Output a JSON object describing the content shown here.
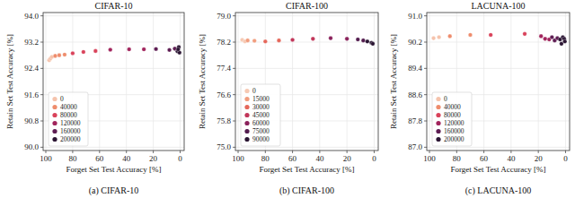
{
  "chart_data": [
    {
      "type": "scatter",
      "title": "CIFAR-10",
      "caption": "(a) CIFAR-10",
      "x_label": "Forget Set Test Accuracy [%]",
      "y_label": "Retain Set Test Accuracy [%]",
      "xlim": [
        102,
        -3
      ],
      "ylim": [
        89.9,
        94.1
      ],
      "xticks": [
        100,
        80,
        60,
        40,
        20,
        0
      ],
      "yticks": [
        {
          "value": 90,
          "label": "90.0"
        },
        {
          "value": 90.8,
          "label": "90.8"
        },
        {
          "value": 91.6,
          "label": "91.6"
        },
        {
          "value": 92.4,
          "label": "92.4"
        },
        {
          "value": 93.2,
          "label": "93.2"
        },
        {
          "value": 94,
          "label": "94.0"
        }
      ],
      "grid": true,
      "legend": "lower left",
      "series": [
        {
          "name": "0",
          "color": "#f5c3ac",
          "x": [
            97.5,
            96.5,
            95.5
          ],
          "y": [
            92.65,
            92.7,
            92.75
          ]
        },
        {
          "name": "40000",
          "color": "#ee8c6c",
          "x": [
            93,
            90,
            86
          ],
          "y": [
            92.78,
            92.8,
            92.82
          ]
        },
        {
          "name": "80000",
          "color": "#d9425a",
          "x": [
            80,
            72,
            63
          ],
          "y": [
            92.86,
            92.9,
            92.93
          ]
        },
        {
          "name": "120000",
          "color": "#a1245c",
          "x": [
            52,
            38,
            27
          ],
          "y": [
            92.97,
            92.98,
            92.98
          ]
        },
        {
          "name": "160000",
          "color": "#5e1d53",
          "x": [
            18,
            8,
            4
          ],
          "y": [
            92.99,
            92.96,
            93.0
          ]
        },
        {
          "name": "200000",
          "color": "#2b1533",
          "x": [
            2,
            1,
            0.5,
            1.5
          ],
          "y": [
            92.92,
            93.05,
            92.88,
            92.98
          ]
        }
      ]
    },
    {
      "type": "scatter",
      "title": "CIFAR-100",
      "caption": "(b) CIFAR-100",
      "x_label": "Forget Set Test Accuracy [%]",
      "y_label": "Retain Set Test Accuracy [%]",
      "xlim": [
        102,
        -3
      ],
      "ylim": [
        74.9,
        79.1
      ],
      "xticks": [
        100,
        80,
        60,
        40,
        20,
        0
      ],
      "yticks": [
        {
          "value": 75,
          "label": "75.0"
        },
        {
          "value": 75.8,
          "label": "75.8"
        },
        {
          "value": 76.6,
          "label": "76.6"
        },
        {
          "value": 77.4,
          "label": "77.4"
        },
        {
          "value": 78.2,
          "label": "78.2"
        },
        {
          "value": 79,
          "label": "79.0"
        }
      ],
      "grid": true,
      "legend": "lower left",
      "series": [
        {
          "name": "0",
          "color": "#f6c9b3",
          "x": [
            97,
            95
          ],
          "y": [
            78.27,
            78.22
          ]
        },
        {
          "name": "15000",
          "color": "#f19d7e",
          "x": [
            93,
            88
          ],
          "y": [
            78.25,
            78.24
          ]
        },
        {
          "name": "30000",
          "color": "#e5675a",
          "x": [
            80,
            70
          ],
          "y": [
            78.22,
            78.25
          ]
        },
        {
          "name": "45000",
          "color": "#c13559",
          "x": [
            60,
            45
          ],
          "y": [
            78.27,
            78.3
          ]
        },
        {
          "name": "60000",
          "color": "#8a215b",
          "x": [
            32,
            20
          ],
          "y": [
            78.32,
            78.3
          ]
        },
        {
          "name": "75000",
          "color": "#531c4e",
          "x": [
            12,
            8
          ],
          "y": [
            78.28,
            78.25
          ]
        },
        {
          "name": "90000",
          "color": "#291431",
          "x": [
            5,
            2,
            1
          ],
          "y": [
            78.22,
            78.18,
            78.15
          ]
        }
      ]
    },
    {
      "type": "scatter",
      "title": "LACUNA-100",
      "caption": "(c) LACUNA-100",
      "x_label": "Forget Set Test Accuracy [%]",
      "y_label": "Retain Set Test Accuracy [%]",
      "xlim": [
        102,
        -3
      ],
      "ylim": [
        86.9,
        91.1
      ],
      "xticks": [
        100,
        80,
        60,
        40,
        20,
        0
      ],
      "yticks": [
        {
          "value": 87,
          "label": "87.0"
        },
        {
          "value": 87.8,
          "label": "87.8"
        },
        {
          "value": 88.6,
          "label": "88.6"
        },
        {
          "value": 89.4,
          "label": "89.4"
        },
        {
          "value": 90.2,
          "label": "90.2"
        },
        {
          "value": 91,
          "label": "91.0"
        }
      ],
      "grid": true,
      "legend": "lower left",
      "series": [
        {
          "name": "0",
          "color": "#f5c3ac",
          "x": [
            97,
            93
          ],
          "y": [
            90.32,
            90.35
          ]
        },
        {
          "name": "40000",
          "color": "#ee8c6c",
          "x": [
            85,
            70
          ],
          "y": [
            90.38,
            90.42
          ]
        },
        {
          "name": "80000",
          "color": "#d9425a",
          "x": [
            55,
            30
          ],
          "y": [
            90.42,
            90.45
          ]
        },
        {
          "name": "120000",
          "color": "#a1245c",
          "x": [
            18,
            15,
            12
          ],
          "y": [
            90.38,
            90.3,
            90.28
          ]
        },
        {
          "name": "160000",
          "color": "#5e1d53",
          "x": [
            10,
            8,
            6
          ],
          "y": [
            90.35,
            90.25,
            90.32
          ]
        },
        {
          "name": "200000",
          "color": "#2b1533",
          "x": [
            4,
            3,
            2,
            1,
            0.5
          ],
          "y": [
            90.28,
            90.15,
            90.35,
            90.3,
            90.22
          ]
        }
      ]
    }
  ]
}
